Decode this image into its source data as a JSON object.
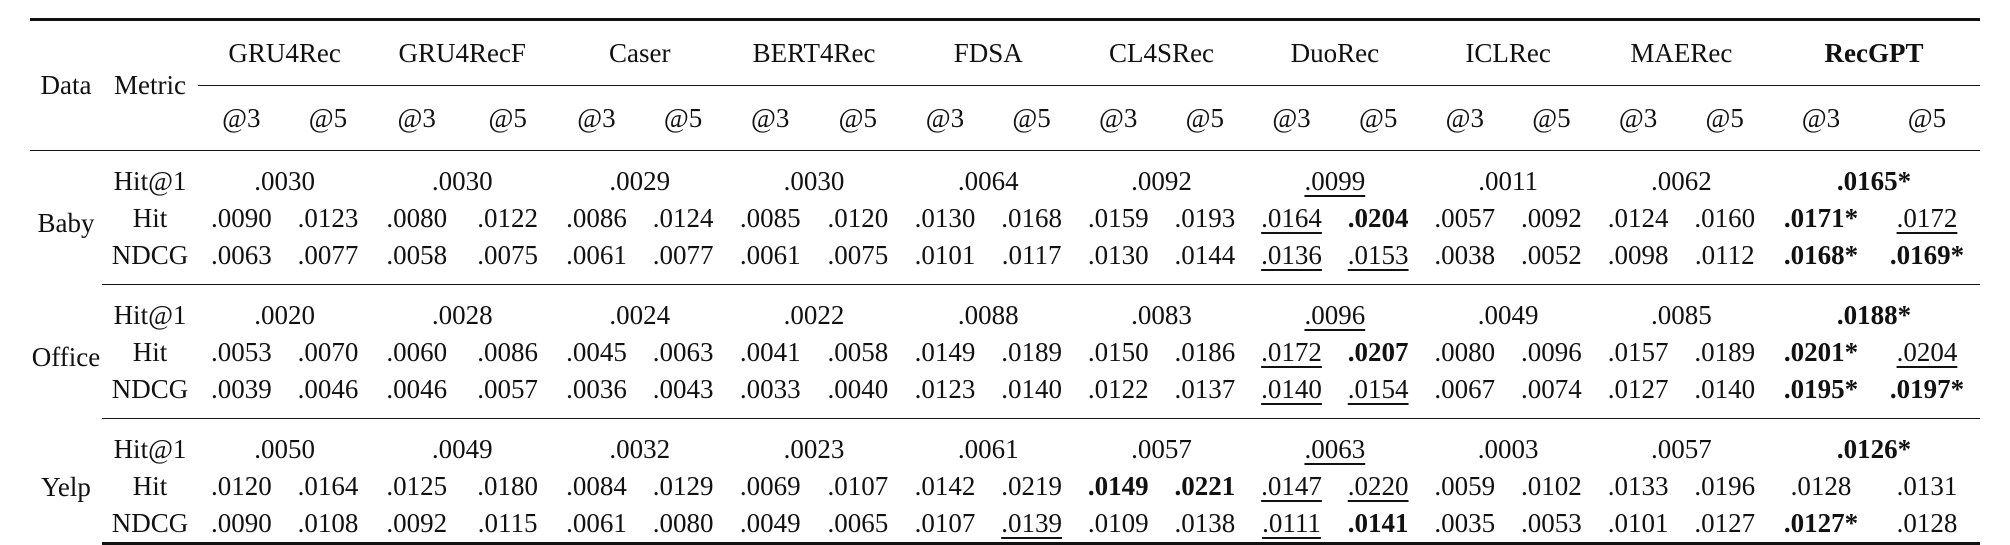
{
  "models": [
    "GRU4Rec",
    "GRU4RecF",
    "Caser",
    "BERT4Rec",
    "FDSA",
    "CL4SRec",
    "DuoRec",
    "ICLRec",
    "MAERec",
    "RecGPT"
  ],
  "header": {
    "data_label": "Data",
    "metric_label": "Metric",
    "k3": "@3",
    "k5": "@5"
  },
  "groups": [
    {
      "name": "Baby",
      "rows": [
        {
          "metric": "Hit@1",
          "cells": [
            ".0030",
            ".0030",
            ".0029",
            ".0030",
            ".0064",
            ".0092",
            ".0099",
            ".0011",
            ".0062",
            ".0165*"
          ]
        },
        {
          "metric": "Hit",
          "cells": [
            ".0090",
            ".0123",
            ".0080",
            ".0122",
            ".0086",
            ".0124",
            ".0085",
            ".0120",
            ".0130",
            ".0168",
            ".0159",
            ".0193",
            ".0164",
            ".0204",
            ".0057",
            ".0092",
            ".0124",
            ".0160",
            ".0171*",
            ".0172"
          ]
        },
        {
          "metric": "NDCG",
          "cells": [
            ".0063",
            ".0077",
            ".0058",
            ".0075",
            ".0061",
            ".0077",
            ".0061",
            ".0075",
            ".0101",
            ".0117",
            ".0130",
            ".0144",
            ".0136",
            ".0153",
            ".0038",
            ".0052",
            ".0098",
            ".0112",
            ".0168*",
            ".0169*"
          ]
        }
      ]
    },
    {
      "name": "Office",
      "rows": [
        {
          "metric": "Hit@1",
          "cells": [
            ".0020",
            ".0028",
            ".0024",
            ".0022",
            ".0088",
            ".0083",
            ".0096",
            ".0049",
            ".0085",
            ".0188*"
          ]
        },
        {
          "metric": "Hit",
          "cells": [
            ".0053",
            ".0070",
            ".0060",
            ".0086",
            ".0045",
            ".0063",
            ".0041",
            ".0058",
            ".0149",
            ".0189",
            ".0150",
            ".0186",
            ".0172",
            ".0207",
            ".0080",
            ".0096",
            ".0157",
            ".0189",
            ".0201*",
            ".0204"
          ]
        },
        {
          "metric": "NDCG",
          "cells": [
            ".0039",
            ".0046",
            ".0046",
            ".0057",
            ".0036",
            ".0043",
            ".0033",
            ".0040",
            ".0123",
            ".0140",
            ".0122",
            ".0137",
            ".0140",
            ".0154",
            ".0067",
            ".0074",
            ".0127",
            ".0140",
            ".0195*",
            ".0197*"
          ]
        }
      ]
    },
    {
      "name": "Yelp",
      "rows": [
        {
          "metric": "Hit@1",
          "cells": [
            ".0050",
            ".0049",
            ".0032",
            ".0023",
            ".0061",
            ".0057",
            ".0063",
            ".0003",
            ".0057",
            ".0126*"
          ]
        },
        {
          "metric": "Hit",
          "cells": [
            ".0120",
            ".0164",
            ".0125",
            ".0180",
            ".0084",
            ".0129",
            ".0069",
            ".0107",
            ".0142",
            ".0219",
            ".0149",
            ".0221",
            ".0147",
            ".0220",
            ".0059",
            ".0102",
            ".0133",
            ".0196",
            ".0128",
            ".0131"
          ]
        },
        {
          "metric": "NDCG",
          "cells": [
            ".0090",
            ".0108",
            ".0092",
            ".0115",
            ".0061",
            ".0080",
            ".0049",
            ".0065",
            ".0107",
            ".0139",
            ".0109",
            ".0138",
            ".0111",
            ".0141",
            ".0035",
            ".0053",
            ".0101",
            ".0127",
            ".0127*",
            ".0128"
          ]
        }
      ]
    }
  ]
}
